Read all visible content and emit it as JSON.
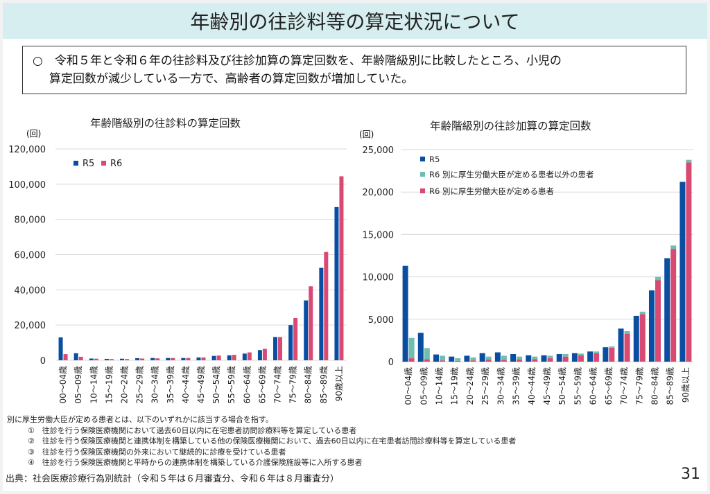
{
  "title": "年齢別の往診料等の算定状況について",
  "summary": [
    "○　令和５年と令和６年の往診料及び往診加算の算定回数を、年齢階級別に比較したところ、小児の",
    "算定回数が減少している一方で、高齢者の算定回数が増加していた。"
  ],
  "notes": {
    "heading": "別に厚生労働大臣が定める患者とは、以下のいずれかに該当する場合を指す。",
    "items": [
      "①　往診を行う保険医療機関において過去60日以内に在宅患者訪問診療料等を算定している患者",
      "②　往診を行う保険医療機関と連携体制を構築している他の保険医療機関において、過去60日以内に在宅患者訪問診療料等を算定している患者",
      "③　往診を行う保険医療機関の外来において継続的に診療を受けている患者",
      "④　往診を行う保険医療機関と平時からの連携体制を構築している介護保険施設等に入所する患者"
    ]
  },
  "source": "出典：社会医療診療行為別統計（令和５年は６月審査分、令和６年は８月審査分）",
  "page_number": "31",
  "chart_data": [
    {
      "type": "bar",
      "title": "年齢階級別の往診料の算定回数",
      "ylabel": "(回)",
      "ylim": [
        0,
        120000
      ],
      "yticks": [
        "0",
        "20,000",
        "40,000",
        "60,000",
        "80,000",
        "100,000",
        "120,000"
      ],
      "categories": [
        "00～04歳",
        "05～09歳",
        "10～14歳",
        "15～19歳",
        "20～24歳",
        "25～29歳",
        "30～34歳",
        "35～39歳",
        "40～44歳",
        "45～49歳",
        "50～54歳",
        "55～59歳",
        "60～64歳",
        "65～69歳",
        "70～74歳",
        "75～79歳",
        "80～84歳",
        "85～89歳",
        "90歳以上"
      ],
      "legend": "top-left",
      "series": [
        {
          "name": "R5",
          "color": "#0a4ea2",
          "values": [
            13000,
            4000,
            1000,
            800,
            900,
            1200,
            1300,
            1300,
            1300,
            1600,
            2500,
            2800,
            3800,
            5800,
            13200,
            20000,
            34000,
            52500,
            87000
          ]
        },
        {
          "name": "R6",
          "color": "#d84a72",
          "values": [
            3500,
            2000,
            900,
            700,
            700,
            1000,
            1100,
            1300,
            1300,
            1600,
            2700,
            3100,
            4500,
            6500,
            13200,
            24000,
            42000,
            61500,
            104500
          ]
        }
      ]
    },
    {
      "type": "bar",
      "title": "年齢階級別の往診加算の算定回数",
      "ylabel": "(回)",
      "ylim": [
        0,
        25000
      ],
      "yticks": [
        "0",
        "5,000",
        "10,000",
        "15,000",
        "20,000",
        "25,000"
      ],
      "categories": [
        "00～04歳",
        "05～09歳",
        "10～14歳",
        "15～19歳",
        "20～24歳",
        "25～29歳",
        "30～34歳",
        "35～39歳",
        "40～44歳",
        "45～49歳",
        "50～54歳",
        "55～59歳",
        "60～64歳",
        "65～69歳",
        "70～74歳",
        "75～79歳",
        "80～84歳",
        "85～89歳",
        "90歳以上"
      ],
      "legend": "top-left",
      "series": [
        {
          "name": "R5",
          "color": "#0a4ea2",
          "values": [
            11300,
            3400,
            850,
            600,
            700,
            1000,
            1100,
            900,
            750,
            750,
            900,
            1000,
            1200,
            1700,
            3900,
            5400,
            8400,
            12200,
            21200
          ]
        },
        {
          "name": "R6 別に厚生労働大臣が定める患者以外の患者",
          "color": "#6fbfb0",
          "stack": "R6",
          "values": [
            2400,
            1300,
            550,
            300,
            350,
            350,
            500,
            350,
            300,
            300,
            300,
            200,
            200,
            150,
            300,
            300,
            400,
            400,
            300
          ]
        },
        {
          "name": "R6 別に厚生労働大臣が定める患者",
          "color": "#d84a72",
          "stack": "R6",
          "values": [
            400,
            300,
            150,
            100,
            150,
            250,
            200,
            250,
            300,
            400,
            600,
            750,
            1000,
            1650,
            3300,
            5600,
            9600,
            13300,
            23500
          ]
        }
      ]
    }
  ]
}
